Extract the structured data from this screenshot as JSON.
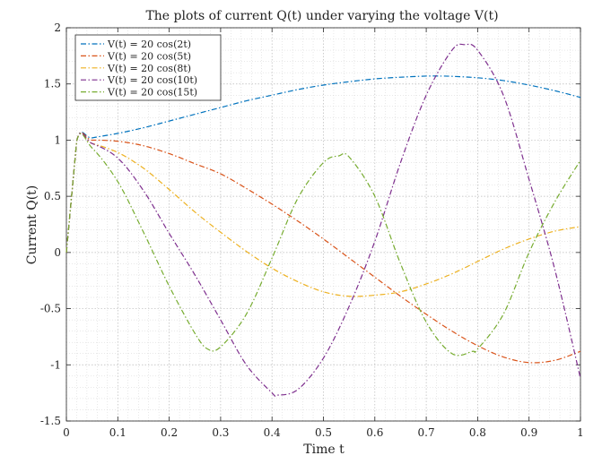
{
  "chart_data": {
    "type": "line",
    "title": "The plots of current Q(t) under varying the voltage V(t)",
    "xlabel": "Time t",
    "ylabel": "Current Q(t)",
    "xlim": [
      0,
      1
    ],
    "ylim": [
      -1.5,
      2
    ],
    "xticks": [
      0,
      0.1,
      0.2,
      0.3,
      0.4,
      0.5,
      0.6,
      0.7,
      0.8,
      0.9,
      1
    ],
    "xtick_labels": [
      "0",
      "0.1",
      "0.2",
      "0.3",
      "0.4",
      "0.5",
      "0.6",
      "0.7",
      "0.8",
      "0.9",
      "1"
    ],
    "yticks": [
      -1.5,
      -1,
      -0.5,
      0,
      0.5,
      1,
      1.5,
      2
    ],
    "ytick_labels": [
      "-1.5",
      "-1",
      "-0.5",
      "0",
      "0.5",
      "1",
      "1.5",
      "2"
    ],
    "grid": true,
    "minor_grid": true,
    "legend_position": "top-left",
    "line_style": "dash-dot",
    "series": [
      {
        "name": "V(t) = 20 cos(2t)",
        "color": "#0072BD",
        "x": [
          0,
          0.02,
          0.05,
          0.1,
          0.15,
          0.2,
          0.25,
          0.3,
          0.35,
          0.4,
          0.45,
          0.5,
          0.55,
          0.6,
          0.65,
          0.7,
          0.73,
          0.75,
          0.8,
          0.85,
          0.9,
          0.95,
          1
        ],
        "y": [
          0,
          0.99,
          1.02,
          1.06,
          1.11,
          1.17,
          1.23,
          1.29,
          1.35,
          1.4,
          1.45,
          1.49,
          1.52,
          1.545,
          1.56,
          1.57,
          1.57,
          1.568,
          1.555,
          1.53,
          1.49,
          1.44,
          1.38
        ]
      },
      {
        "name": "V(t) = 20 cos(5t)",
        "color": "#D95319",
        "x": [
          0,
          0.02,
          0.05,
          0.1,
          0.15,
          0.2,
          0.25,
          0.3,
          0.35,
          0.4,
          0.45,
          0.5,
          0.55,
          0.6,
          0.65,
          0.7,
          0.75,
          0.8,
          0.85,
          0.9,
          0.95,
          1
        ],
        "y": [
          0,
          0.99,
          1.0,
          0.99,
          0.95,
          0.88,
          0.79,
          0.7,
          0.57,
          0.43,
          0.28,
          0.12,
          -0.05,
          -0.22,
          -0.39,
          -0.55,
          -0.7,
          -0.83,
          -0.93,
          -0.98,
          -0.96,
          -0.88
        ]
      },
      {
        "name": "V(t) = 20 cos(8t)",
        "color": "#EDB120",
        "x": [
          0,
          0.02,
          0.05,
          0.1,
          0.15,
          0.2,
          0.25,
          0.3,
          0.35,
          0.4,
          0.45,
          0.5,
          0.55,
          0.6,
          0.65,
          0.7,
          0.75,
          0.8,
          0.85,
          0.9,
          0.95,
          1
        ],
        "y": [
          0,
          0.99,
          0.97,
          0.89,
          0.75,
          0.56,
          0.36,
          0.18,
          0.01,
          -0.14,
          -0.26,
          -0.35,
          -0.39,
          -0.38,
          -0.35,
          -0.28,
          -0.19,
          -0.08,
          0.03,
          0.12,
          0.19,
          0.23
        ]
      },
      {
        "name": "V(t) = 20 cos(10t)",
        "color": "#7E2F8E",
        "x": [
          0,
          0.02,
          0.05,
          0.1,
          0.15,
          0.2,
          0.25,
          0.3,
          0.35,
          0.4,
          0.41,
          0.45,
          0.5,
          0.55,
          0.6,
          0.65,
          0.7,
          0.75,
          0.775,
          0.8,
          0.85,
          0.9,
          0.95,
          1
        ],
        "y": [
          0,
          0.99,
          0.97,
          0.84,
          0.55,
          0.17,
          -0.2,
          -0.6,
          -1.0,
          -1.25,
          -1.27,
          -1.22,
          -0.94,
          -0.48,
          0.1,
          0.8,
          1.4,
          1.8,
          1.85,
          1.8,
          1.4,
          0.65,
          -0.15,
          -1.12
        ]
      },
      {
        "name": "V(t) = 20 cos(15t)",
        "color": "#77AC30",
        "x": [
          0,
          0.02,
          0.05,
          0.1,
          0.15,
          0.2,
          0.25,
          0.275,
          0.3,
          0.35,
          0.4,
          0.45,
          0.5,
          0.53,
          0.55,
          0.6,
          0.65,
          0.7,
          0.75,
          0.79,
          0.8,
          0.85,
          0.9,
          0.95,
          1
        ],
        "y": [
          0,
          0.99,
          0.93,
          0.63,
          0.18,
          -0.3,
          -0.72,
          -0.86,
          -0.84,
          -0.55,
          -0.05,
          0.48,
          0.8,
          0.86,
          0.85,
          0.5,
          -0.1,
          -0.62,
          -0.9,
          -0.88,
          -0.86,
          -0.55,
          0.0,
          0.45,
          0.82
        ]
      }
    ]
  }
}
